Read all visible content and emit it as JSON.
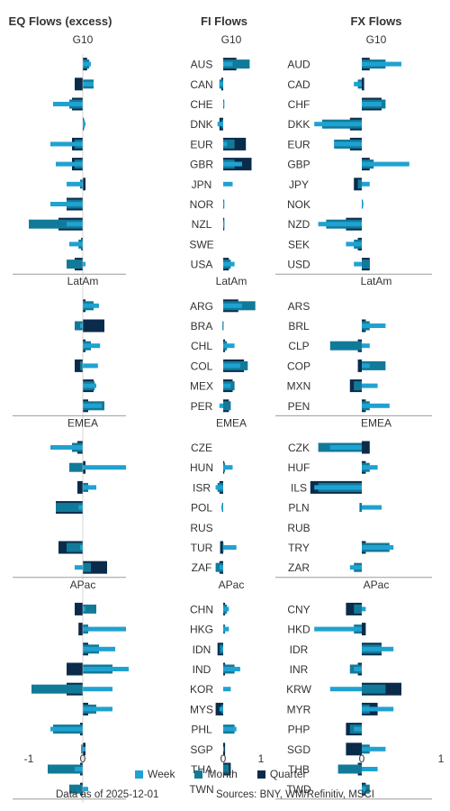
{
  "colors": {
    "week": "#1fa2d1",
    "month": "#127a99",
    "quarter": "#0b2b4b",
    "text": "#333333",
    "divider": "#9a9a9a"
  },
  "panels": {
    "eq": {
      "title": "EQ Flows (excess)",
      "ticks": [
        {
          "value": -1,
          "label": "-1"
        },
        {
          "value": 0,
          "label": "0"
        }
      ]
    },
    "fi": {
      "title": "FI Flows",
      "ticks": [
        {
          "value": 0,
          "label": "0"
        },
        {
          "value": 1,
          "label": "1"
        }
      ]
    },
    "fx": {
      "title": "FX Flows",
      "ticks": [
        {
          "value": 0,
          "label": "0"
        },
        {
          "value": 1,
          "label": "1"
        }
      ]
    }
  },
  "legend": {
    "week": "Week",
    "month": "Month",
    "quarter": "Quarter"
  },
  "footer": {
    "date_note": "Data as of 2025-12-01",
    "sources": "Sources:  BNY, WM/Refinitiv, MSCI"
  },
  "chart_data": {
    "type": "bar",
    "orientation": "horizontal",
    "series_names": [
      "Week",
      "Month",
      "Quarter"
    ],
    "groups": [
      {
        "name": "G10",
        "eq": {
          "week": [
            0.15,
            0.2,
            -0.55,
            0.05,
            -0.6,
            -0.5,
            -0.3,
            -0.6,
            -0.3,
            -0.25,
            0.05
          ],
          "month": [
            0.12,
            0.2,
            -0.25,
            0.03,
            -0.15,
            -0.15,
            -0.05,
            -0.3,
            -1.0,
            -0.08,
            -0.3
          ],
          "quarter": [
            0.08,
            -0.15,
            -0.2,
            0.02,
            -0.2,
            -0.2,
            0.05,
            -0.3,
            -0.45,
            -0.03,
            -0.15
          ]
        },
        "fi": {
          "labels": [
            "AUS",
            "CAN",
            "CHE",
            "DNK",
            "EUR",
            "GBR",
            "JPN",
            "NOR",
            "NZL",
            "SWE",
            "USA"
          ],
          "week": [
            0.25,
            -0.1,
            0.01,
            -0.15,
            0.1,
            0.5,
            0.25,
            0.01,
            0.02,
            0.0,
            0.3
          ],
          "month": [
            0.7,
            -0.1,
            0.01,
            -0.05,
            0.3,
            0.3,
            0.0,
            0.01,
            0.02,
            0.0,
            0.2
          ],
          "quarter": [
            0.35,
            -0.05,
            0.0,
            -0.1,
            0.6,
            0.75,
            0.0,
            0.0,
            0.01,
            0.0,
            0.15
          ]
        },
        "fx": {
          "labels": [
            "AUD",
            "CAD",
            "CHF",
            "DKK",
            "EUR",
            "GBP",
            "JPY",
            "NOK",
            "NZD",
            "SEK",
            "USD"
          ],
          "week": [
            0.5,
            -0.1,
            0.25,
            -0.6,
            -0.35,
            0.6,
            0.1,
            0.02,
            -0.55,
            -0.2,
            -0.1
          ],
          "month": [
            0.3,
            -0.05,
            0.3,
            -0.5,
            -0.35,
            0.15,
            -0.05,
            0.01,
            -0.45,
            -0.1,
            0.1
          ],
          "quarter": [
            0.1,
            0.03,
            0.25,
            -0.15,
            -0.15,
            0.1,
            -0.1,
            0.0,
            -0.2,
            -0.05,
            0.1
          ]
        }
      },
      {
        "name": "LatAm",
        "eq": {
          "week": [
            0.3,
            -0.05,
            0.32,
            0.28,
            0.25,
            0.35
          ],
          "month": [
            0.2,
            -0.15,
            0.15,
            -0.05,
            0.22,
            0.4
          ],
          "quarter": [
            0.05,
            0.4,
            0.05,
            -0.15,
            0.2,
            0.1
          ]
        },
        "fi": {
          "labels": [
            "ARG",
            "BRA",
            "CHL",
            "COL",
            "MEX",
            "PER"
          ],
          "week": [
            0.5,
            0.0,
            0.3,
            0.45,
            0.2,
            -0.1
          ],
          "month": [
            0.85,
            -0.02,
            0.1,
            0.65,
            0.3,
            0.2
          ],
          "quarter": [
            0.4,
            0.0,
            0.05,
            0.55,
            0.25,
            0.15
          ]
        },
        "fx": {
          "labels": [
            "ARS",
            "BRL",
            "CLP",
            "COP",
            "MXN",
            "PEN"
          ],
          "week": [
            0.0,
            0.3,
            0.1,
            0.1,
            0.2,
            0.35
          ],
          "month": [
            0.0,
            0.1,
            -0.4,
            0.3,
            -0.1,
            0.1
          ],
          "quarter": [
            0.0,
            0.05,
            -0.05,
            -0.05,
            -0.15,
            0.05
          ]
        }
      },
      {
        "name": "EMEA",
        "eq": {
          "week": [
            -0.6,
            0.8,
            0.25,
            -0.08,
            0.0,
            -0.05,
            -0.15
          ],
          "month": [
            -0.2,
            -0.25,
            0.1,
            -0.5,
            0.0,
            -0.3,
            0.15
          ],
          "quarter": [
            -0.1,
            0.05,
            -0.1,
            -0.5,
            0.0,
            -0.45,
            0.45
          ]
        },
        "fi": {
          "labels": [
            "CZE",
            "HUN",
            "ISR",
            "POL",
            "RUS",
            "TUR",
            "ZAF"
          ],
          "week": [
            0.0,
            0.25,
            -0.2,
            -0.05,
            0.0,
            0.35,
            -0.1
          ],
          "month": [
            0.0,
            0.05,
            -0.15,
            -0.03,
            0.0,
            -0.02,
            -0.2
          ],
          "quarter": [
            0.0,
            0.02,
            -0.1,
            0.0,
            0.0,
            -0.08,
            -0.1
          ]
        },
        "fx": {
          "labels": [
            "CZK",
            "HUF",
            "ILS",
            "PLN",
            "RUB",
            "TRY",
            "ZAR"
          ],
          "week": [
            -0.4,
            0.2,
            -0.6,
            0.25,
            0.0,
            0.4,
            -0.15
          ],
          "month": [
            -0.55,
            0.1,
            -0.55,
            -0.03,
            0.0,
            0.35,
            -0.1
          ],
          "quarter": [
            0.1,
            0.05,
            -0.65,
            0.0,
            0.0,
            0.05,
            0.0
          ]
        }
      },
      {
        "name": "APac",
        "eq": {
          "week": [
            0.05,
            0.8,
            0.6,
            0.85,
            0.55,
            0.55,
            -0.6,
            0.05,
            -0.15,
            0.1
          ],
          "month": [
            0.25,
            0.1,
            0.3,
            0.55,
            -0.95,
            0.25,
            -0.55,
            -0.03,
            -0.65,
            -0.25
          ],
          "quarter": [
            -0.15,
            -0.08,
            0.1,
            -0.3,
            -0.3,
            0.1,
            -0.05,
            0.05,
            -0.05,
            -0.05
          ]
        },
        "fi": {
          "labels": [
            "CHN",
            "HKG",
            "IDN",
            "IND",
            "KOR",
            "MYS",
            "PHL",
            "SGP",
            "THA",
            "TWN"
          ],
          "week": [
            0.15,
            0.15,
            -0.05,
            0.45,
            0.2,
            -0.1,
            0.35,
            0.02,
            0.0,
            0.0
          ],
          "month": [
            0.1,
            0.05,
            -0.1,
            0.3,
            0.0,
            -0.05,
            0.3,
            0.0,
            0.15,
            0.0
          ],
          "quarter": [
            0.05,
            0.0,
            -0.15,
            0.05,
            0.0,
            -0.2,
            0.0,
            0.05,
            0.2,
            0.0
          ]
        },
        "fx": {
          "labels": [
            "CNY",
            "HKD",
            "IDR",
            "INR",
            "KRW",
            "MYR",
            "PHP",
            "SGD",
            "THB",
            "TWD"
          ],
          "week": [
            0.05,
            -0.6,
            0.4,
            -0.1,
            -0.4,
            0.4,
            -0.1,
            0.3,
            0.2,
            0.05
          ],
          "month": [
            -0.1,
            -0.1,
            0.25,
            -0.15,
            0.3,
            0.1,
            -0.15,
            0.1,
            -0.3,
            0.1
          ],
          "quarter": [
            -0.2,
            0.05,
            0.25,
            -0.05,
            0.5,
            0.2,
            -0.2,
            -0.2,
            -0.05,
            0.05
          ]
        }
      }
    ]
  }
}
